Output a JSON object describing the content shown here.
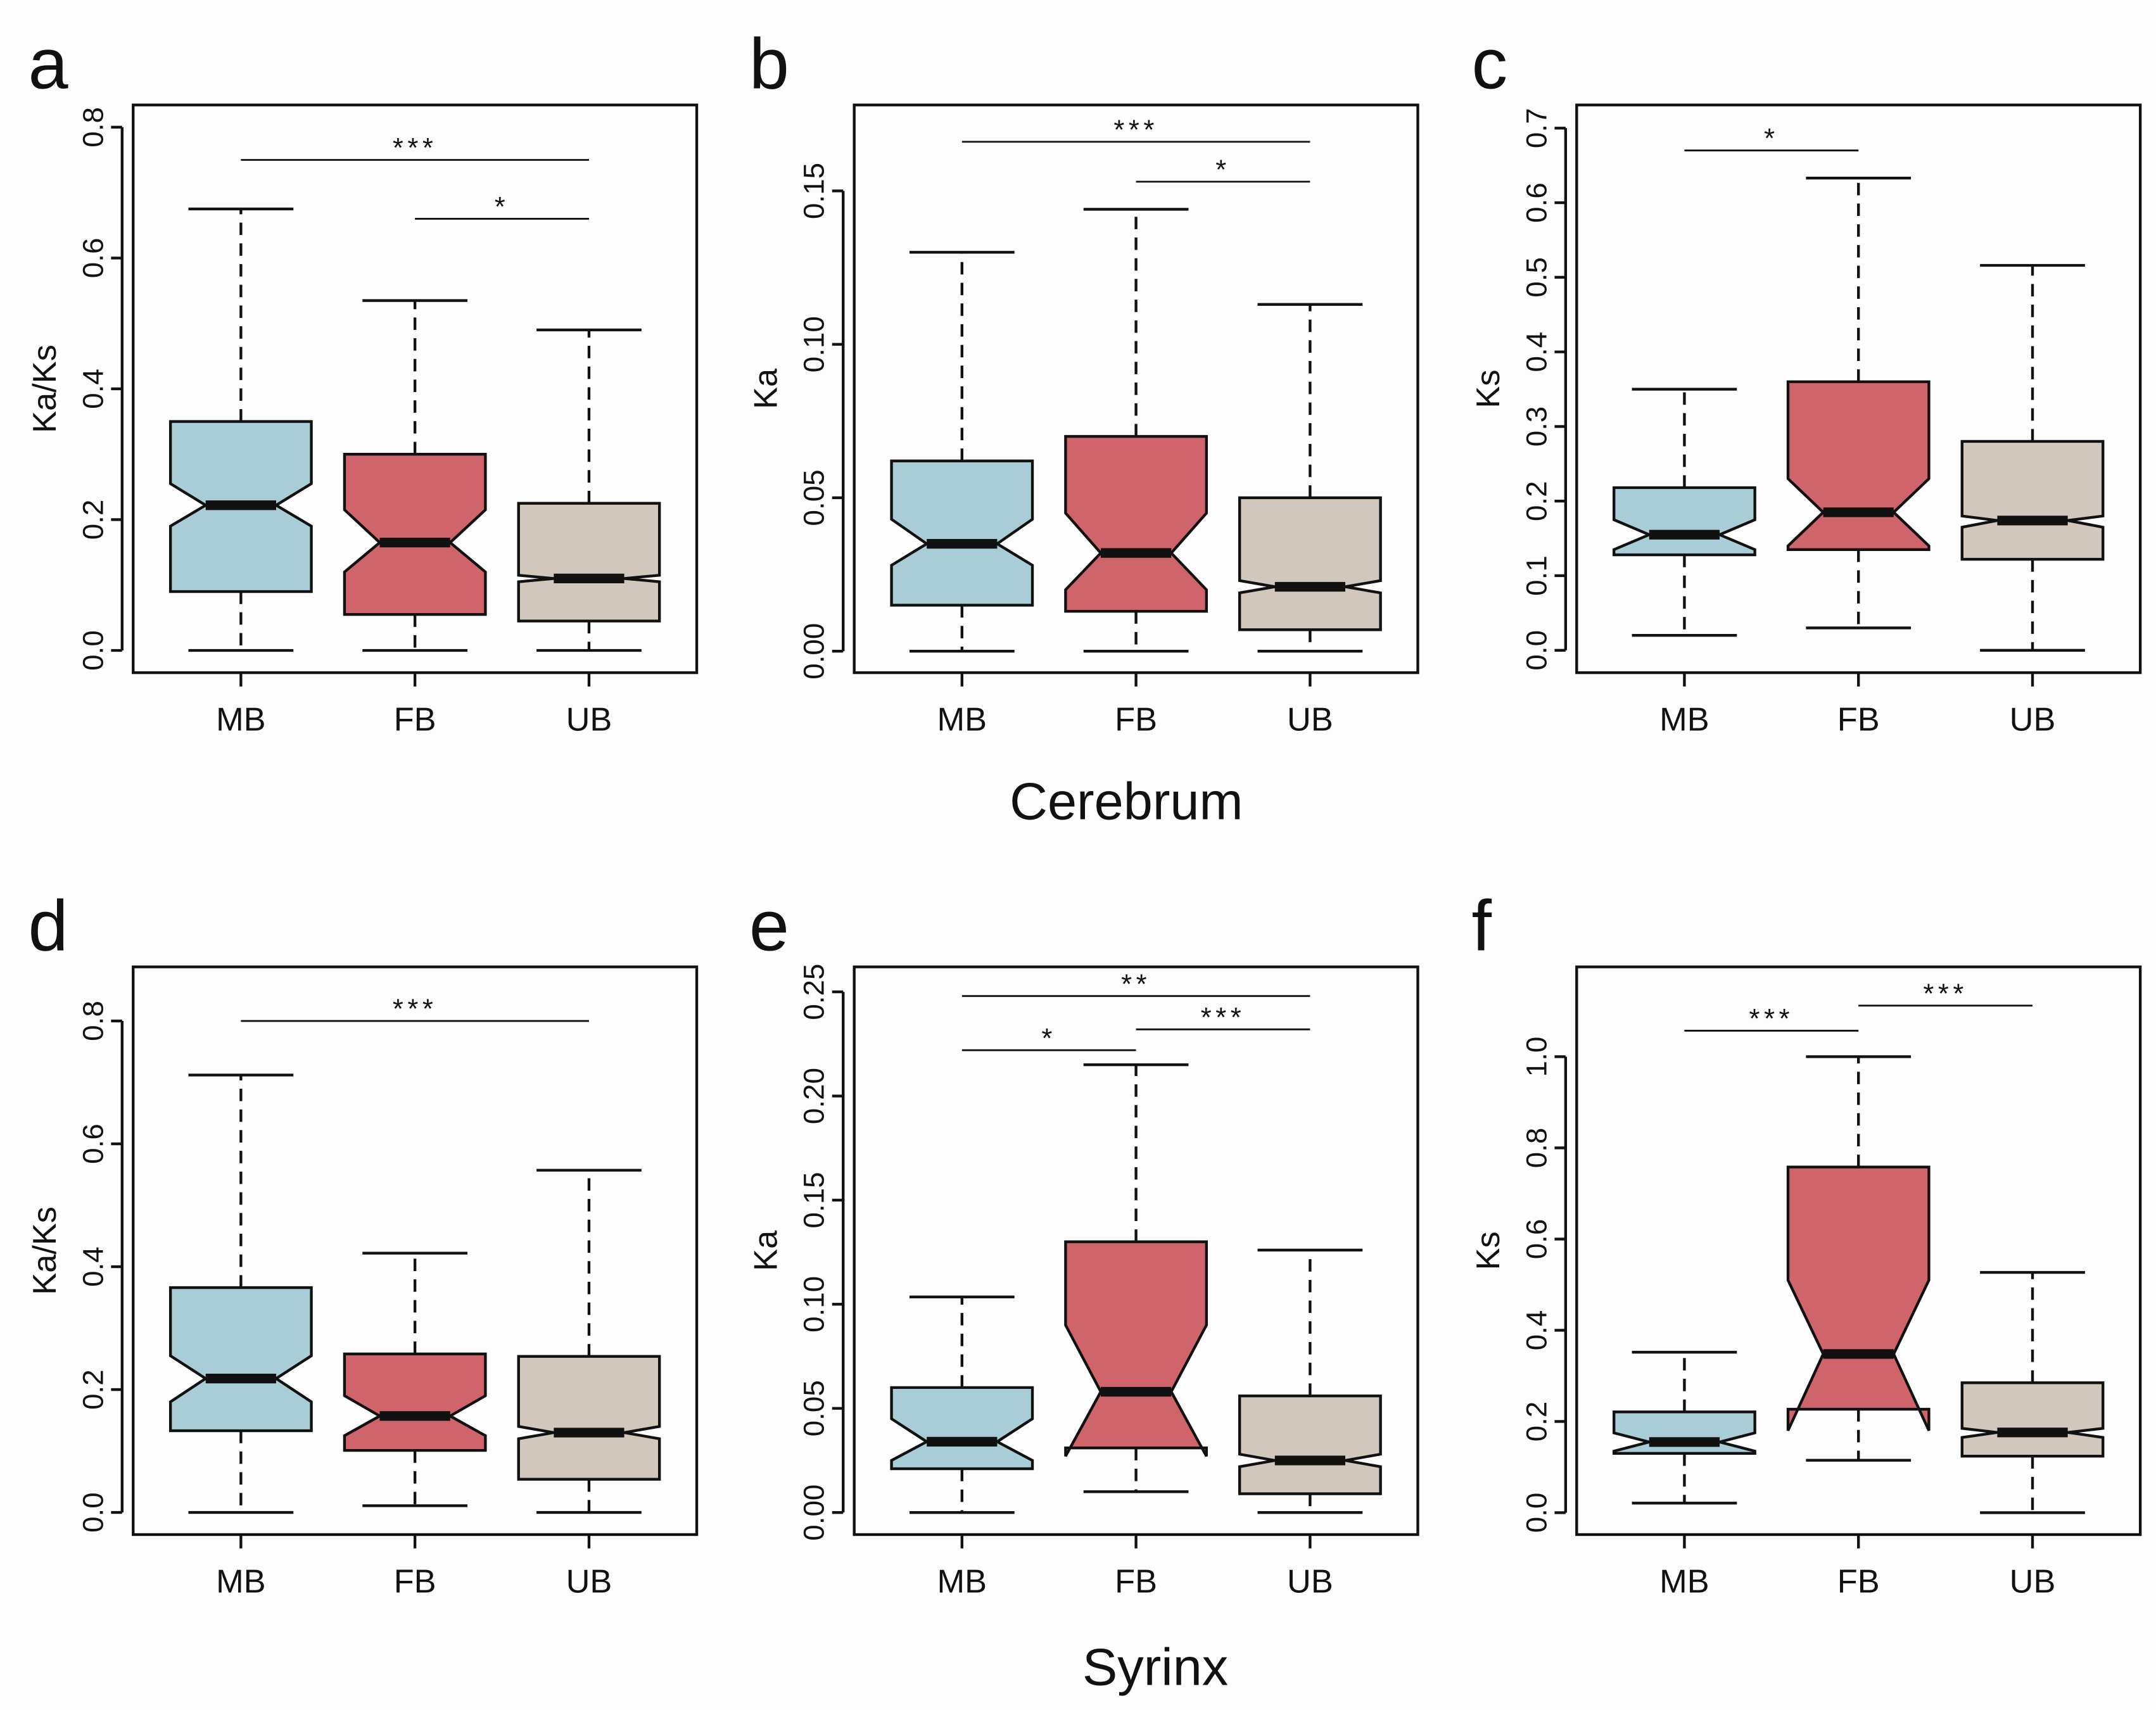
{
  "colors": {
    "MB": "#a9cdd6",
    "FB": "#cf646a",
    "UB": "#d2c7bd",
    "stroke": "#111111"
  },
  "groups": [
    "MB",
    "FB",
    "UB"
  ],
  "row_labels": [
    "Cerebrum",
    "Syrinx"
  ],
  "chart_data": [
    {
      "type": "box",
      "panel": "a",
      "row": 0,
      "col": 0,
      "ylabel": "Ka/Ks",
      "ylim": [
        -0.034,
        0.834
      ],
      "ticks": [
        0,
        0.2,
        0.4,
        0.6,
        0.8
      ],
      "tick_labels": [
        "0.0",
        "0.2",
        "0.4",
        "0.6",
        "0.8"
      ],
      "categories": [
        "MB",
        "FB",
        "UB"
      ],
      "boxes": [
        {
          "lo": 0,
          "q1": 0.09,
          "notch_lo": 0.19,
          "median": 0.222,
          "notch_hi": 0.255,
          "q3": 0.35,
          "hi": 0.675
        },
        {
          "lo": 0,
          "q1": 0.055,
          "notch_lo": 0.12,
          "median": 0.165,
          "notch_hi": 0.215,
          "q3": 0.3,
          "hi": 0.535
        },
        {
          "lo": 0,
          "q1": 0.045,
          "notch_lo": 0.105,
          "median": 0.11,
          "notch_hi": 0.115,
          "q3": 0.225,
          "hi": 0.49
        }
      ],
      "significance": [
        {
          "from": "MB",
          "to": "UB",
          "y": 0.75,
          "label": "***"
        },
        {
          "from": "FB",
          "to": "UB",
          "y": 0.66,
          "label": "*"
        }
      ]
    },
    {
      "type": "box",
      "panel": "b",
      "row": 0,
      "col": 1,
      "ylabel": "Ka",
      "ylim": [
        -0.007,
        0.178
      ],
      "ticks": [
        0,
        0.05,
        0.1,
        0.15
      ],
      "tick_labels": [
        "0.00",
        "0.05",
        "0.10",
        "0.15"
      ],
      "categories": [
        "MB",
        "FB",
        "UB"
      ],
      "boxes": [
        {
          "lo": 0,
          "q1": 0.015,
          "notch_lo": 0.028,
          "median": 0.035,
          "notch_hi": 0.043,
          "q3": 0.062,
          "hi": 0.13
        },
        {
          "lo": 0,
          "q1": 0.013,
          "notch_lo": 0.02,
          "median": 0.032,
          "notch_hi": 0.045,
          "q3": 0.07,
          "hi": 0.144
        },
        {
          "lo": 0,
          "q1": 0.007,
          "notch_lo": 0.019,
          "median": 0.021,
          "notch_hi": 0.023,
          "q3": 0.05,
          "hi": 0.113
        }
      ],
      "significance": [
        {
          "from": "MB",
          "to": "UB",
          "y": 0.166,
          "label": "***"
        },
        {
          "from": "FB",
          "to": "UB",
          "y": 0.153,
          "label": "*"
        }
      ]
    },
    {
      "type": "box",
      "panel": "c",
      "row": 0,
      "col": 2,
      "ylabel": "Ks",
      "ylim": [
        -0.03,
        0.731
      ],
      "ticks": [
        0,
        0.1,
        0.2,
        0.3,
        0.4,
        0.5,
        0.6,
        0.7
      ],
      "tick_labels": [
        "0.0",
        "0.1",
        "0.2",
        "0.3",
        "0.4",
        "0.5",
        "0.6",
        "0.7"
      ],
      "categories": [
        "MB",
        "FB",
        "UB"
      ],
      "boxes": [
        {
          "lo": 0.02,
          "q1": 0.128,
          "notch_lo": 0.135,
          "median": 0.155,
          "notch_hi": 0.175,
          "q3": 0.218,
          "hi": 0.35
        },
        {
          "lo": 0.03,
          "q1": 0.135,
          "notch_lo": 0.14,
          "median": 0.185,
          "notch_hi": 0.23,
          "q3": 0.36,
          "hi": 0.633
        },
        {
          "lo": 0,
          "q1": 0.122,
          "notch_lo": 0.165,
          "median": 0.174,
          "notch_hi": 0.18,
          "q3": 0.28,
          "hi": 0.516
        }
      ],
      "significance": [
        {
          "from": "MB",
          "to": "FB",
          "y": 0.67,
          "label": "*"
        }
      ]
    },
    {
      "type": "box",
      "panel": "d",
      "row": 1,
      "col": 0,
      "ylabel": "Ka/Ks",
      "ylim": [
        -0.036,
        0.888
      ],
      "ticks": [
        0,
        0.2,
        0.4,
        0.6,
        0.8
      ],
      "tick_labels": [
        "0.0",
        "0.2",
        "0.4",
        "0.6",
        "0.8"
      ],
      "categories": [
        "MB",
        "FB",
        "UB"
      ],
      "boxes": [
        {
          "lo": 0,
          "q1": 0.133,
          "notch_lo": 0.18,
          "median": 0.218,
          "notch_hi": 0.255,
          "q3": 0.366,
          "hi": 0.712
        },
        {
          "lo": 0.011,
          "q1": 0.101,
          "notch_lo": 0.125,
          "median": 0.157,
          "notch_hi": 0.19,
          "q3": 0.258,
          "hi": 0.422
        },
        {
          "lo": 0,
          "q1": 0.054,
          "notch_lo": 0.12,
          "median": 0.13,
          "notch_hi": 0.14,
          "q3": 0.254,
          "hi": 0.557
        }
      ],
      "significance": [
        {
          "from": "MB",
          "to": "UB",
          "y": 0.8,
          "label": "***"
        }
      ]
    },
    {
      "type": "box",
      "panel": "e",
      "row": 1,
      "col": 1,
      "ylabel": "Ka",
      "ylim": [
        -0.0106,
        0.262
      ],
      "ticks": [
        0,
        0.05,
        0.1,
        0.15,
        0.2,
        0.25
      ],
      "tick_labels": [
        "0.00",
        "0.05",
        "0.10",
        "0.15",
        "0.20",
        "0.25"
      ],
      "categories": [
        "MB",
        "FB",
        "UB"
      ],
      "boxes": [
        {
          "lo": 0,
          "q1": 0.021,
          "notch_lo": 0.025,
          "median": 0.034,
          "notch_hi": 0.045,
          "q3": 0.06,
          "hi": 0.1035
        },
        {
          "lo": 0.01,
          "q1": 0.031,
          "notch_lo": 0.027,
          "median": 0.058,
          "notch_hi": 0.09,
          "q3": 0.13,
          "hi": 0.215
        },
        {
          "lo": 0,
          "q1": 0.009,
          "notch_lo": 0.022,
          "median": 0.025,
          "notch_hi": 0.028,
          "q3": 0.056,
          "hi": 0.126
        }
      ],
      "significance": [
        {
          "from": "MB",
          "to": "UB",
          "y": 0.248,
          "label": "**"
        },
        {
          "from": "FB",
          "to": "UB",
          "y": 0.232,
          "label": "***"
        },
        {
          "from": "MB",
          "to": "FB",
          "y": 0.222,
          "label": "*"
        }
      ]
    },
    {
      "type": "box",
      "panel": "f",
      "row": 1,
      "col": 2,
      "ylabel": "Ks",
      "ylim": [
        -0.048,
        1.197
      ],
      "ticks": [
        0,
        0.2,
        0.4,
        0.6,
        0.8,
        1.0
      ],
      "tick_labels": [
        "0.0",
        "0.2",
        "0.4",
        "0.6",
        "0.8",
        "1.0"
      ],
      "categories": [
        "MB",
        "FB",
        "UB"
      ],
      "boxes": [
        {
          "lo": 0.021,
          "q1": 0.13,
          "notch_lo": 0.135,
          "median": 0.155,
          "notch_hi": 0.175,
          "q3": 0.221,
          "hi": 0.352
        },
        {
          "lo": 0.115,
          "q1": 0.227,
          "notch_lo": 0.18,
          "median": 0.348,
          "notch_hi": 0.51,
          "q3": 0.758,
          "hi": 1.0
        },
        {
          "lo": 0,
          "q1": 0.124,
          "notch_lo": 0.165,
          "median": 0.176,
          "notch_hi": 0.185,
          "q3": 0.285,
          "hi": 0.527
        }
      ],
      "significance": [
        {
          "from": "MB",
          "to": "FB",
          "y": 1.057,
          "label": "***"
        },
        {
          "from": "FB",
          "to": "UB",
          "y": 1.112,
          "label": "***"
        }
      ]
    }
  ]
}
